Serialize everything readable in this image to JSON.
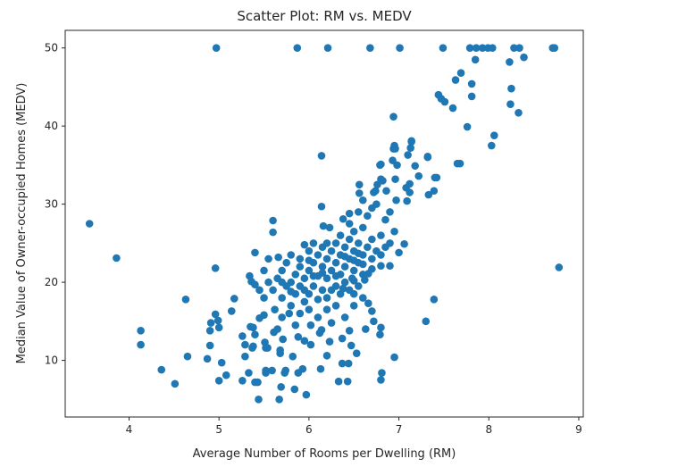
{
  "chart_data": {
    "type": "scatter",
    "title": "Scatter Plot: RM vs. MEDV",
    "xlabel": "Average Number of Rooms per Dwelling (RM)",
    "ylabel": "Median Value of Owner-occupied Homes (MEDV)",
    "xlim": [
      3.29,
      9.05
    ],
    "ylim": [
      2.75,
      52.25
    ],
    "xticks": [
      4,
      5,
      6,
      7,
      8,
      9
    ],
    "yticks": [
      10,
      20,
      30,
      40,
      50
    ],
    "xtick_labels": [
      "4",
      "5",
      "6",
      "7",
      "8",
      "9"
    ],
    "ytick_labels": [
      "10",
      "20",
      "30",
      "40",
      "50"
    ],
    "grid": false,
    "color": "#1f77b4",
    "points": [
      [
        4.97,
        50
      ],
      [
        5.87,
        50
      ],
      [
        6.21,
        50
      ],
      [
        6.68,
        50
      ],
      [
        7.01,
        50
      ],
      [
        7.49,
        50
      ],
      [
        7.79,
        50
      ],
      [
        7.86,
        50
      ],
      [
        7.93,
        50
      ],
      [
        7.99,
        50
      ],
      [
        8.04,
        50
      ],
      [
        8.28,
        50
      ],
      [
        8.34,
        50
      ],
      [
        8.71,
        50
      ],
      [
        8.73,
        50
      ],
      [
        7.85,
        48.5
      ],
      [
        8.23,
        48.2
      ],
      [
        8.39,
        48.8
      ],
      [
        7.69,
        46.8
      ],
      [
        7.63,
        45.9
      ],
      [
        7.81,
        45.4
      ],
      [
        7.44,
        44.0
      ],
      [
        7.47,
        43.5
      ],
      [
        7.51,
        43.1
      ],
      [
        7.6,
        42.3
      ],
      [
        7.81,
        43.8
      ],
      [
        8.25,
        44.8
      ],
      [
        8.24,
        42.8
      ],
      [
        8.33,
        41.7
      ],
      [
        6.94,
        41.2
      ],
      [
        7.76,
        39.9
      ],
      [
        8.06,
        38.8
      ],
      [
        8.03,
        37.5
      ],
      [
        7.68,
        35.2
      ],
      [
        7.14,
        38.0
      ],
      [
        7.13,
        37.2
      ],
      [
        6.94,
        37.1
      ],
      [
        6.95,
        37.5
      ],
      [
        6.8,
        35.1
      ],
      [
        6.93,
        35.6
      ],
      [
        6.98,
        35.0
      ],
      [
        7.1,
        36.3
      ],
      [
        7.32,
        36.1
      ],
      [
        7.18,
        34.9
      ],
      [
        7.22,
        33.6
      ],
      [
        7.42,
        33.4
      ],
      [
        6.8,
        33.2
      ],
      [
        6.96,
        33.2
      ],
      [
        7.12,
        32.6
      ],
      [
        7.08,
        32.1
      ],
      [
        7.12,
        31.5
      ],
      [
        7.39,
        31.7
      ],
      [
        7.33,
        31.2
      ],
      [
        6.86,
        31.7
      ],
      [
        6.74,
        31.7
      ],
      [
        7.09,
        30.4
      ],
      [
        6.97,
        30.5
      ],
      [
        6.14,
        36.2
      ],
      [
        6.14,
        29.7
      ],
      [
        5.6,
        27.9
      ],
      [
        5.6,
        26.4
      ],
      [
        5.4,
        23.8
      ],
      [
        6.16,
        27.2
      ],
      [
        6.23,
        27.0
      ],
      [
        6.38,
        28.1
      ],
      [
        6.45,
        28.8
      ],
      [
        6.56,
        32.5
      ],
      [
        6.56,
        31.4
      ],
      [
        6.76,
        32.5
      ],
      [
        6.82,
        33.0
      ],
      [
        6.79,
        35.0
      ],
      [
        6.96,
        37.1
      ],
      [
        7.14,
        38.1
      ],
      [
        7.32,
        36.0
      ],
      [
        7.4,
        33.4
      ],
      [
        7.65,
        35.2
      ],
      [
        7.39,
        17.8
      ],
      [
        7.3,
        15.0
      ],
      [
        6.95,
        10.4
      ],
      [
        6.8,
        7.5
      ],
      [
        6.81,
        8.4
      ],
      [
        7.06,
        24.9
      ],
      [
        7.0,
        23.8
      ],
      [
        6.9,
        22.1
      ],
      [
        6.8,
        22.1
      ],
      [
        6.66,
        21.1
      ],
      [
        6.5,
        20.2
      ],
      [
        6.5,
        18.5
      ],
      [
        6.66,
        17.3
      ],
      [
        6.7,
        16.3
      ],
      [
        6.72,
        15.0
      ],
      [
        6.8,
        14.2
      ],
      [
        6.79,
        13.3
      ],
      [
        6.63,
        14.0
      ],
      [
        6.53,
        10.9
      ],
      [
        6.44,
        9.6
      ],
      [
        6.37,
        9.6
      ],
      [
        6.33,
        7.3
      ],
      [
        6.43,
        7.3
      ],
      [
        6.13,
        8.9
      ],
      [
        5.97,
        5.6
      ],
      [
        5.84,
        6.3
      ],
      [
        5.67,
        5.0
      ],
      [
        5.44,
        5.0
      ],
      [
        5.43,
        7.2
      ],
      [
        5.52,
        8.4
      ],
      [
        5.73,
        8.4
      ],
      [
        5.88,
        8.4
      ],
      [
        5.93,
        8.9
      ],
      [
        5.82,
        10.5
      ],
      [
        6.02,
        12.0
      ],
      [
        6.2,
        10.6
      ],
      [
        6.23,
        12.4
      ],
      [
        6.14,
        13.9
      ],
      [
        6.37,
        12.8
      ],
      [
        6.47,
        11.9
      ],
      [
        5.88,
        13.0
      ],
      [
        5.71,
        12.7
      ],
      [
        5.54,
        11.6
      ],
      [
        5.38,
        11.8
      ],
      [
        5.5,
        15.8
      ],
      [
        5.38,
        14.2
      ],
      [
        3.56,
        27.5
      ],
      [
        3.86,
        23.1
      ],
      [
        4.13,
        13.8
      ],
      [
        4.13,
        12.0
      ],
      [
        4.36,
        8.8
      ],
      [
        4.51,
        7.0
      ],
      [
        4.65,
        10.5
      ],
      [
        4.63,
        17.8
      ],
      [
        4.96,
        21.8
      ],
      [
        4.9,
        11.9
      ],
      [
        4.87,
        10.2
      ],
      [
        4.9,
        13.8
      ],
      [
        4.91,
        14.8
      ],
      [
        4.96,
        15.9
      ],
      [
        5.0,
        14.2
      ],
      [
        4.99,
        15.1
      ],
      [
        5.03,
        9.7
      ],
      [
        5.0,
        7.4
      ],
      [
        5.08,
        8.1
      ],
      [
        5.14,
        16.3
      ],
      [
        5.17,
        17.9
      ],
      [
        5.26,
        13.1
      ],
      [
        5.29,
        12.0
      ],
      [
        5.37,
        11.6
      ],
      [
        5.29,
        10.5
      ],
      [
        5.33,
        8.4
      ],
      [
        5.26,
        7.4
      ],
      [
        5.4,
        7.2
      ],
      [
        5.52,
        8.7
      ],
      [
        5.59,
        8.7
      ],
      [
        5.69,
        6.6
      ],
      [
        5.4,
        13.3
      ],
      [
        5.35,
        14.3
      ],
      [
        5.45,
        15.4
      ],
      [
        5.51,
        12.3
      ],
      [
        5.52,
        11.6
      ],
      [
        5.55,
        23.0
      ],
      [
        5.66,
        23.2
      ],
      [
        5.34,
        20.8
      ],
      [
        5.4,
        19.7
      ],
      [
        5.36,
        20.1
      ],
      [
        5.68,
        10.9
      ],
      [
        5.68,
        11.3
      ],
      [
        5.74,
        8.7
      ],
      [
        5.61,
        13.6
      ],
      [
        8.78,
        21.9
      ],
      [
        5.6,
        19.0
      ],
      [
        5.65,
        20.5
      ],
      [
        5.7,
        18.0
      ],
      [
        5.7,
        21.5
      ],
      [
        5.75,
        19.5
      ],
      [
        5.75,
        22.5
      ],
      [
        5.8,
        17.0
      ],
      [
        5.8,
        20.0
      ],
      [
        5.85,
        18.5
      ],
      [
        5.85,
        21.0
      ],
      [
        5.9,
        19.5
      ],
      [
        5.9,
        23.0
      ],
      [
        5.95,
        17.5
      ],
      [
        5.95,
        20.5
      ],
      [
        6.0,
        18.5
      ],
      [
        6.0,
        21.5
      ],
      [
        6.0,
        24.0
      ],
      [
        6.05,
        19.5
      ],
      [
        6.05,
        22.5
      ],
      [
        6.1,
        17.8
      ],
      [
        6.1,
        20.8
      ],
      [
        6.1,
        23.5
      ],
      [
        6.15,
        19.0
      ],
      [
        6.15,
        22.0
      ],
      [
        6.15,
        24.5
      ],
      [
        6.2,
        18.0
      ],
      [
        6.2,
        20.5
      ],
      [
        6.2,
        23.0
      ],
      [
        6.25,
        21.5
      ],
      [
        6.25,
        24.0
      ],
      [
        6.3,
        19.5
      ],
      [
        6.3,
        22.5
      ],
      [
        6.3,
        25.0
      ],
      [
        6.35,
        21.0
      ],
      [
        6.35,
        23.5
      ],
      [
        6.4,
        20.0
      ],
      [
        6.4,
        22.0
      ],
      [
        6.4,
        24.5
      ],
      [
        6.45,
        23.0
      ],
      [
        6.45,
        25.5
      ],
      [
        6.5,
        21.5
      ],
      [
        6.5,
        24.0
      ],
      [
        6.55,
        22.5
      ],
      [
        6.55,
        25.0
      ],
      [
        6.6,
        23.5
      ],
      [
        6.6,
        21.0
      ],
      [
        6.65,
        24.5
      ],
      [
        6.7,
        23.0
      ],
      [
        6.7,
        25.5
      ],
      [
        6.75,
        24.0
      ],
      [
        6.8,
        23.5
      ],
      [
        5.5,
        18.0
      ],
      [
        5.55,
        20.0
      ],
      [
        5.5,
        21.5
      ],
      [
        5.45,
        19.0
      ],
      [
        5.62,
        16.5
      ],
      [
        5.7,
        15.5
      ],
      [
        5.78,
        16.0
      ],
      [
        5.9,
        16.0
      ],
      [
        6.0,
        16.5
      ],
      [
        6.1,
        15.5
      ],
      [
        6.2,
        16.5
      ],
      [
        6.3,
        17.0
      ],
      [
        6.35,
        18.5
      ],
      [
        6.45,
        19.0
      ],
      [
        6.5,
        17.0
      ],
      [
        6.55,
        19.5
      ],
      [
        6.6,
        18.0
      ],
      [
        6.02,
        14.5
      ],
      [
        6.12,
        13.5
      ],
      [
        6.25,
        14.8
      ],
      [
        6.4,
        15.5
      ],
      [
        6.45,
        13.8
      ],
      [
        5.85,
        14.5
      ],
      [
        5.95,
        12.5
      ],
      [
        5.65,
        14.0
      ],
      [
        6.2,
        25.0
      ],
      [
        6.05,
        25.0
      ],
      [
        5.95,
        24.8
      ],
      [
        6.35,
        26.0
      ],
      [
        6.5,
        26.5
      ],
      [
        6.6,
        27.0
      ],
      [
        6.65,
        28.5
      ],
      [
        6.7,
        29.5
      ],
      [
        6.75,
        30.0
      ],
      [
        6.55,
        29.0
      ],
      [
        6.45,
        27.5
      ],
      [
        6.8,
        26.0
      ],
      [
        6.85,
        28.0
      ],
      [
        6.9,
        29.0
      ],
      [
        6.6,
        30.5
      ],
      [
        6.72,
        31.5
      ],
      [
        6.9,
        25.0
      ],
      [
        6.95,
        26.5
      ],
      [
        6.85,
        24.5
      ],
      [
        6.0,
        22.8
      ],
      [
        5.9,
        22.0
      ],
      [
        5.8,
        23.5
      ],
      [
        6.3,
        20.8
      ],
      [
        6.25,
        19.0
      ],
      [
        6.15,
        21.2
      ],
      [
        6.05,
        20.8
      ],
      [
        5.95,
        19.0
      ],
      [
        5.8,
        18.8
      ],
      [
        5.7,
        20.0
      ],
      [
        6.4,
        23.3
      ],
      [
        6.5,
        22.8
      ],
      [
        6.6,
        22.3
      ],
      [
        6.7,
        21.7
      ],
      [
        6.62,
        20.3
      ],
      [
        6.55,
        23.7
      ],
      [
        6.48,
        20.5
      ],
      [
        6.38,
        19.2
      ]
    ]
  }
}
